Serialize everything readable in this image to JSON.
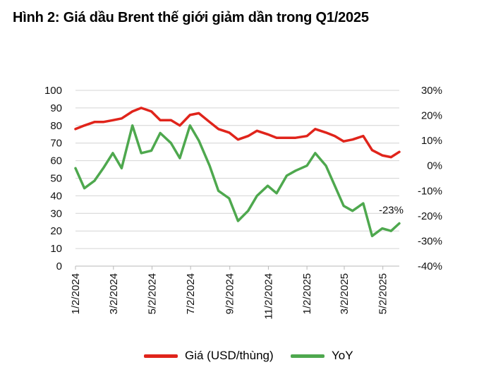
{
  "title": "Hình 2: Giá dầu Brent thế giới giảm dần trong Q1/2025",
  "chart_data": {
    "type": "line",
    "title": "Hình 2: Giá dầu Brent thế giới giảm dần trong Q1/2025",
    "x_tick_labels": [
      "1/2/2024",
      "3/2/2024",
      "5/2/2024",
      "7/2/2024",
      "9/2/2024",
      "11/2/2024",
      "1/2/2025",
      "3/2/2025",
      "5/2/2025"
    ],
    "x": [
      "2024-01-02",
      "2024-01-16",
      "2024-02-01",
      "2024-02-15",
      "2024-03-01",
      "2024-03-15",
      "2024-04-01",
      "2024-04-15",
      "2024-05-01",
      "2024-05-15",
      "2024-06-01",
      "2024-06-15",
      "2024-07-01",
      "2024-07-15",
      "2024-08-01",
      "2024-08-15",
      "2024-09-01",
      "2024-09-15",
      "2024-10-01",
      "2024-10-15",
      "2024-11-01",
      "2024-11-15",
      "2024-12-01",
      "2024-12-15",
      "2025-01-02",
      "2025-01-15",
      "2025-02-01",
      "2025-02-15",
      "2025-03-01",
      "2025-03-15",
      "2025-04-01",
      "2025-04-15",
      "2025-05-01",
      "2025-05-15",
      "2025-05-28"
    ],
    "series": [
      {
        "name": "Giá (USD/thùng)",
        "axis": "left",
        "color": "#e0241b",
        "values": [
          78,
          80,
          82,
          82,
          83,
          84,
          88,
          90,
          88,
          83,
          83,
          80,
          86,
          87,
          82,
          78,
          76,
          72,
          74,
          77,
          75,
          73,
          73,
          73,
          74,
          78,
          76,
          74,
          71,
          72,
          74,
          66,
          63,
          62,
          65
        ]
      },
      {
        "name": "YoY",
        "axis": "right",
        "color": "#4ea84e",
        "values": [
          -1,
          -9,
          -6,
          -1,
          5,
          -1,
          16,
          5,
          6,
          13,
          9,
          3,
          16,
          10,
          0,
          -10,
          -13,
          -22,
          -18,
          -12,
          -8,
          -11,
          -4,
          -2,
          0,
          5,
          0,
          -8,
          -16,
          -18,
          -15,
          -28,
          -25,
          -26,
          -23
        ]
      }
    ],
    "annotations": [
      {
        "series": "YoY",
        "text": "-23%"
      }
    ],
    "y_left": {
      "ticks": [
        0,
        10,
        20,
        30,
        40,
        50,
        60,
        70,
        80,
        90,
        100
      ],
      "range": [
        0,
        100
      ]
    },
    "y_right": {
      "tick_labels": [
        "-40%",
        "-30%",
        "-20%",
        "-10%",
        "0%",
        "10%",
        "20%",
        "30%"
      ],
      "range": [
        -40,
        30
      ]
    },
    "grid": "horizontal",
    "legend": "bottom"
  }
}
